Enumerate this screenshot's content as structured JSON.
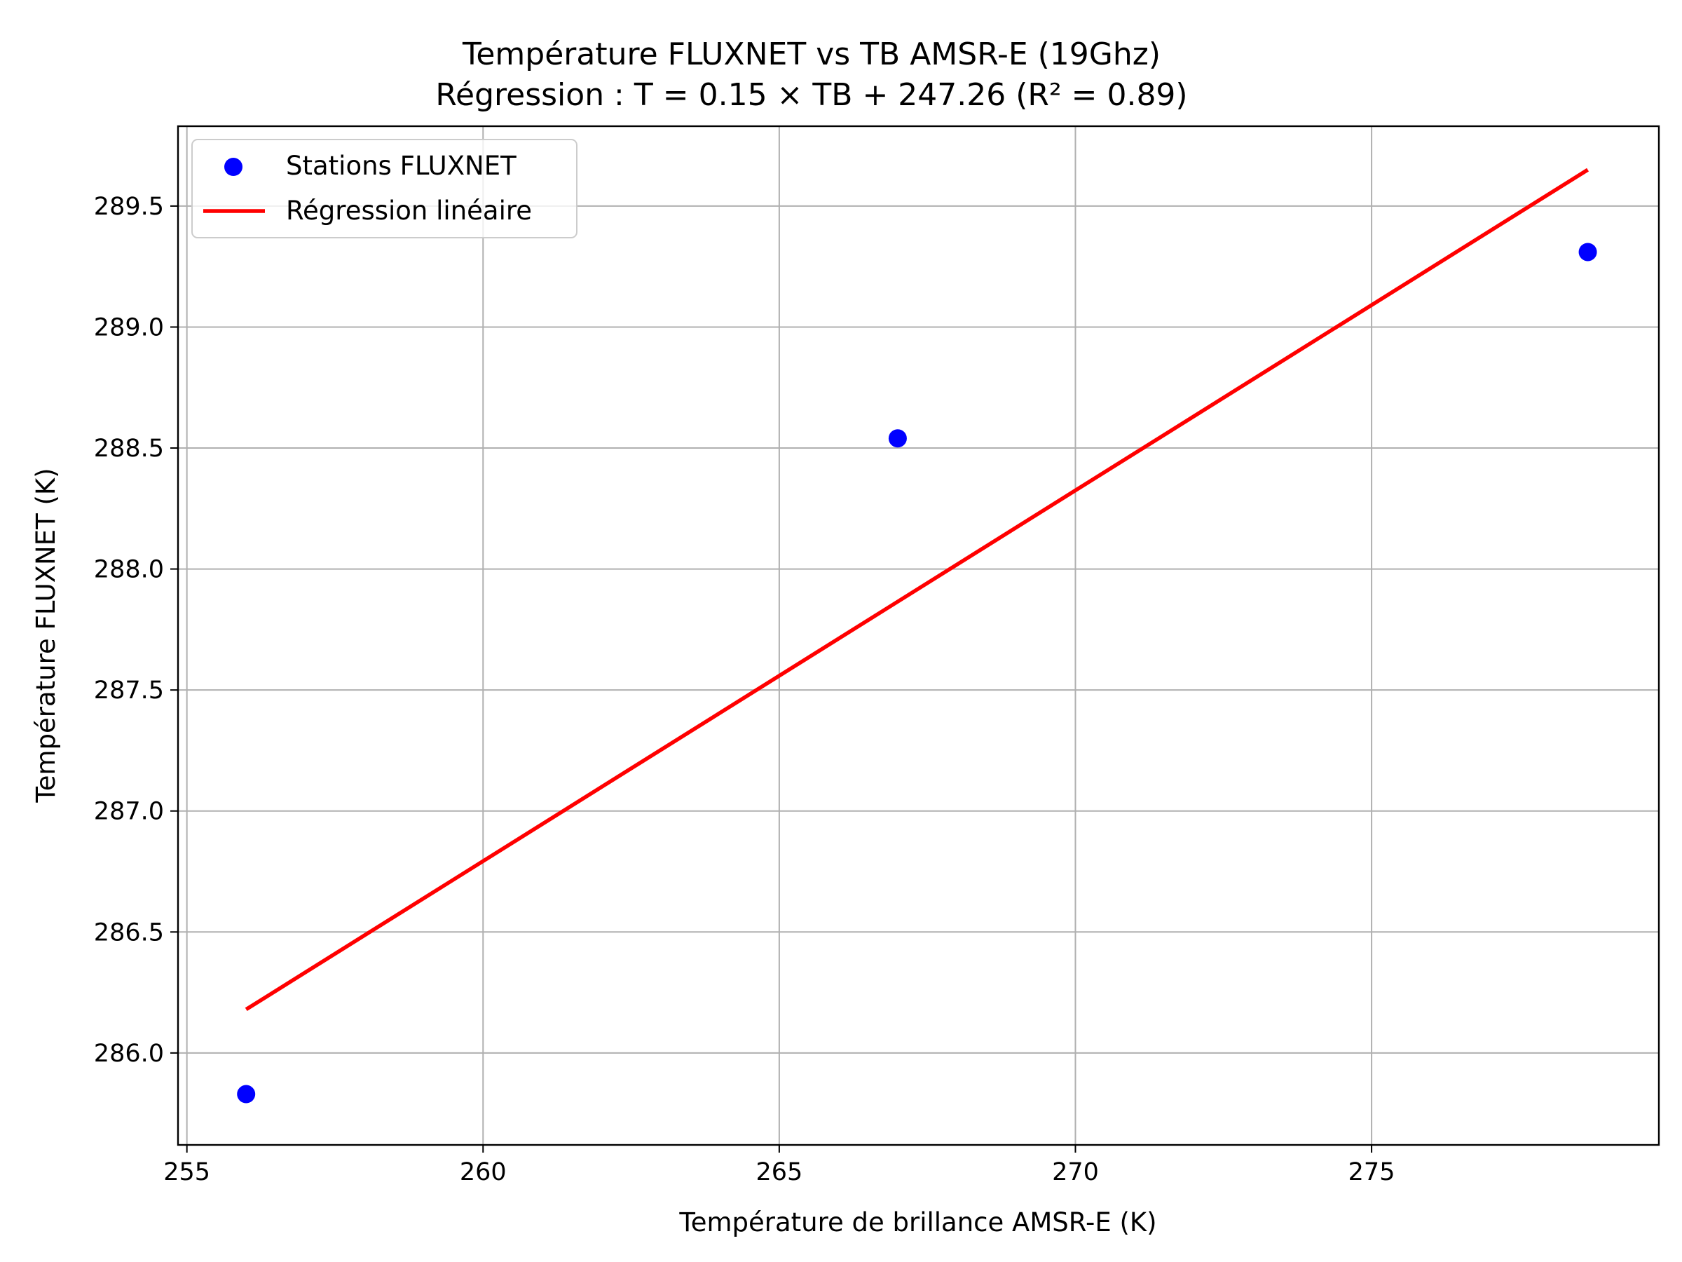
{
  "chart_data": {
    "type": "scatter",
    "title": "Température FLUXNET vs TB AMSR-E (19Ghz)",
    "subtitle": "Régression : T = 0.15 × TB + 247.26 (R² = 0.89)",
    "xlabel": "Température de brillance AMSR-E (K)",
    "ylabel": "Température FLUXNET (K)",
    "xlim": [
      254.85,
      279.85
    ],
    "ylim": [
      285.62,
      289.83
    ],
    "xticks": [
      255,
      260,
      265,
      270,
      275
    ],
    "xtick_labels": [
      "255",
      "260",
      "265",
      "270",
      "275"
    ],
    "yticks": [
      286.0,
      286.5,
      287.0,
      287.5,
      288.0,
      288.5,
      289.0,
      289.5
    ],
    "ytick_labels": [
      "286.0",
      "286.5",
      "287.0",
      "287.5",
      "288.0",
      "288.5",
      "289.0",
      "289.5"
    ],
    "grid": true,
    "legend_position": "top-left",
    "series": [
      {
        "name": "Stations FLUXNET",
        "kind": "scatter",
        "color": "#0000ff",
        "x": [
          256.0,
          267.0,
          278.65
        ],
        "y": [
          285.83,
          288.54,
          289.31
        ]
      },
      {
        "name": "Régression linéaire",
        "kind": "line",
        "color": "#ff0000",
        "x": [
          256.0,
          278.65
        ],
        "y": [
          286.18,
          289.65
        ]
      }
    ]
  }
}
